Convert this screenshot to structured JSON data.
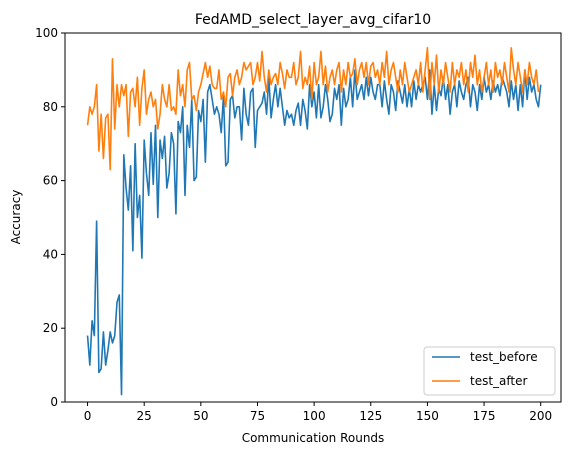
{
  "chart_data": {
    "type": "line",
    "title": "FedAMD_select_layer_avg_cifar10",
    "xlabel": "Communication Rounds",
    "ylabel": "Accuracy",
    "xlim": [
      -9.95,
      208.95
    ],
    "ylim": [
      0,
      100
    ],
    "xticks": [
      0,
      25,
      50,
      75,
      100,
      125,
      150,
      175,
      200
    ],
    "yticks": [
      0,
      20,
      40,
      60,
      80,
      100
    ],
    "grid": false,
    "legend_position": "lower-right",
    "series": [
      {
        "name": "test_before",
        "color": "#1f77b4",
        "values": [
          18,
          10,
          22,
          18,
          49,
          8,
          9,
          19,
          10,
          14,
          19,
          16,
          18,
          27,
          29,
          2,
          67,
          58,
          52,
          64,
          41,
          70,
          50,
          56,
          39,
          71,
          62,
          56,
          73,
          59,
          75,
          50,
          71,
          66,
          72,
          58,
          62,
          73,
          70,
          51,
          76,
          73,
          80,
          56,
          75,
          69,
          82,
          60,
          61,
          79,
          76,
          82,
          65,
          84,
          86,
          82,
          78,
          80,
          78,
          73,
          83,
          64,
          65,
          82,
          83,
          77,
          80,
          80,
          71,
          85,
          78,
          75,
          84,
          85,
          69,
          79,
          80,
          81,
          84,
          78,
          88,
          77,
          82,
          86,
          80,
          85,
          80,
          75,
          79,
          77,
          78,
          75,
          79,
          81,
          75,
          82,
          79,
          74,
          86,
          80,
          84,
          77,
          86,
          77,
          80,
          86,
          82,
          76,
          78,
          85,
          82,
          86,
          75,
          85,
          80,
          82,
          88,
          80,
          90,
          82,
          84,
          86,
          82,
          88,
          83,
          88,
          84,
          82,
          86,
          86,
          80,
          87,
          82,
          78,
          86,
          84,
          79,
          87,
          84,
          81,
          86,
          80,
          85,
          80,
          87,
          82,
          86,
          84,
          86,
          88,
          82,
          90,
          78,
          86,
          79,
          85,
          83,
          88,
          82,
          86,
          78,
          84,
          86,
          80,
          87,
          84,
          82,
          86,
          88,
          80,
          86,
          84,
          79,
          86,
          82,
          88,
          84,
          86,
          82,
          87,
          84,
          86,
          83,
          88,
          86,
          84,
          80,
          87,
          82,
          86,
          79,
          86,
          80,
          90,
          82,
          88,
          84,
          86,
          82,
          80,
          86
        ]
      },
      {
        "name": "test_after",
        "color": "#ff7f0e",
        "values": [
          75,
          80,
          78,
          80,
          86,
          68,
          78,
          66,
          77,
          78,
          63,
          93,
          74,
          86,
          80,
          86,
          83,
          86,
          72,
          84,
          85,
          80,
          88,
          75,
          85,
          90,
          78,
          82,
          84,
          80,
          82,
          74,
          78,
          86,
          82,
          80,
          86,
          79,
          80,
          78,
          90,
          83,
          86,
          80,
          90,
          92,
          82,
          83,
          79,
          84,
          86,
          89,
          92,
          88,
          91,
          86,
          85,
          85,
          90,
          82,
          84,
          80,
          88,
          89,
          83,
          88,
          90,
          86,
          88,
          92,
          90,
          91,
          92,
          86,
          88,
          92,
          87,
          95,
          88,
          84,
          90,
          86,
          88,
          89,
          86,
          92,
          89,
          85,
          90,
          88,
          88,
          92,
          86,
          88,
          95,
          85,
          88,
          86,
          91,
          82,
          92,
          86,
          88,
          95,
          86,
          91,
          84,
          88,
          90,
          86,
          90,
          92,
          84,
          90,
          86,
          92,
          88,
          89,
          93,
          86,
          90,
          92,
          88,
          92,
          86,
          91,
          92,
          88,
          90,
          86,
          92,
          88,
          95,
          86,
          90,
          92,
          88,
          84,
          90,
          86,
          92,
          88,
          84,
          86,
          88,
          90,
          86,
          92,
          84,
          90,
          96,
          82,
          92,
          86,
          94,
          84,
          90,
          86,
          92,
          88,
          84,
          92,
          86,
          90,
          88,
          92,
          86,
          90,
          84,
          92,
          88,
          94,
          86,
          90,
          84,
          88,
          92,
          86,
          90,
          84,
          92,
          88,
          90,
          86,
          92,
          88,
          84,
          96,
          90,
          86,
          92,
          88,
          84,
          90,
          86,
          92,
          88,
          86,
          90,
          84
        ]
      }
    ]
  }
}
